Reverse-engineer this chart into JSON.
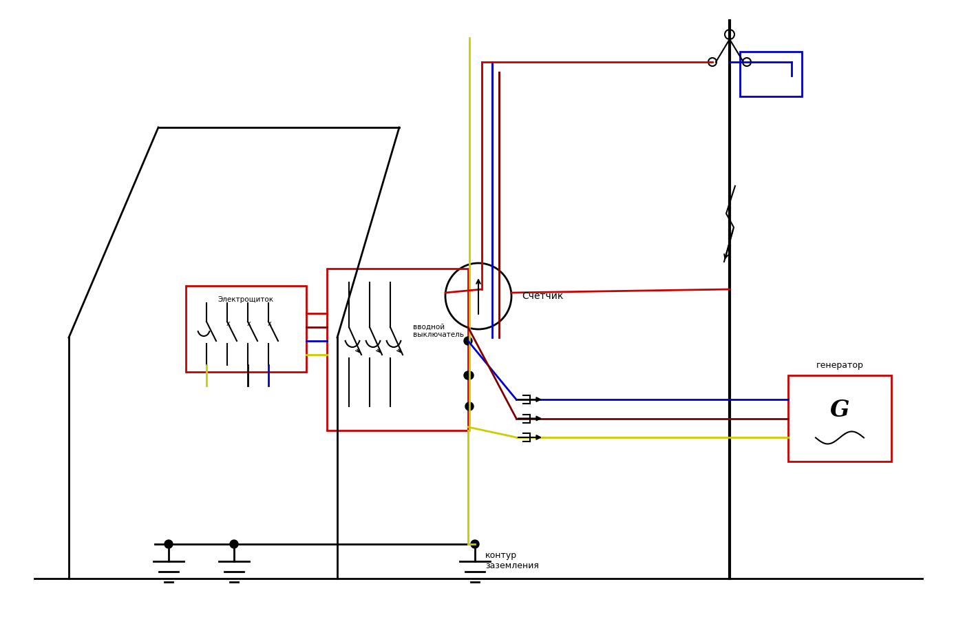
{
  "bg_color": "#ffffff",
  "black": "#000000",
  "red": "#cc0000",
  "blue": "#0000cc",
  "yellow": "#cccc00",
  "brown": "#800000",
  "counter_label": "Счетчик",
  "generator_label": "генератор",
  "elektroschitok_label": "Электрощиток",
  "vvodnoy_label": "вводной\nвыключатель",
  "kontur_label": "контур\nзаземления"
}
